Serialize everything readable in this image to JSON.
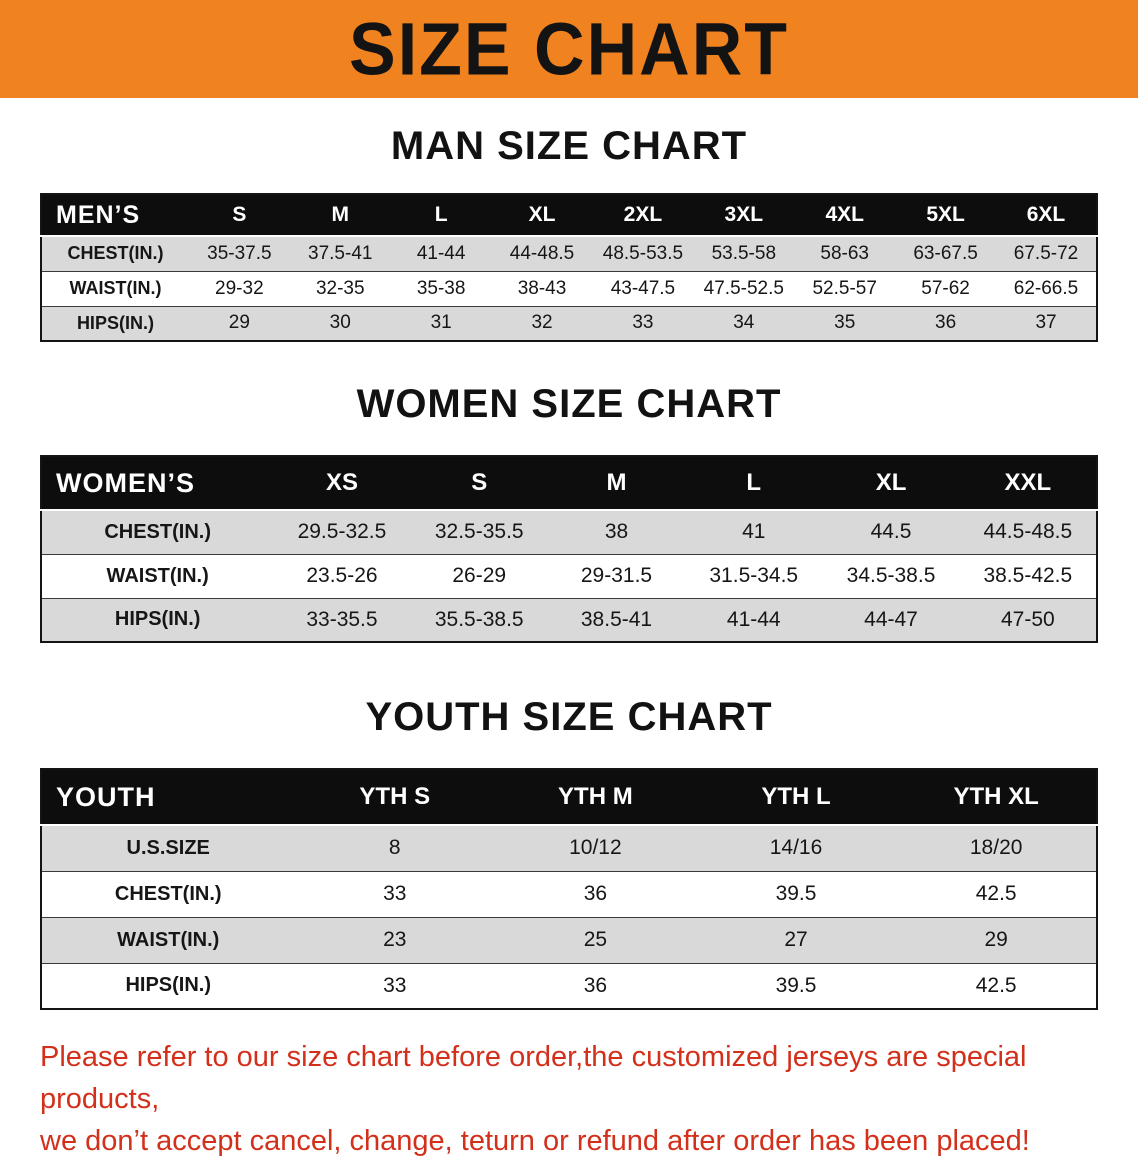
{
  "banner": {
    "title": "SIZE CHART"
  },
  "colors": {
    "banner_bg": "#F0821F",
    "header_bg": "#0d0d0d",
    "row_alt_bg": "#d9d9d9",
    "disclaimer_text": "#D3301C"
  },
  "men": {
    "heading": "MAN SIZE CHART",
    "label": "MEN’S",
    "columns": [
      "S",
      "M",
      "L",
      "XL",
      "2XL",
      "3XL",
      "4XL",
      "5XL",
      "6XL"
    ],
    "rows": [
      {
        "label": "CHEST(IN.)",
        "values": [
          "35-37.5",
          "37.5-41",
          "41-44",
          "44-48.5",
          "48.5-53.5",
          "53.5-58",
          "58-63",
          "63-67.5",
          "67.5-72"
        ]
      },
      {
        "label": "WAIST(IN.)",
        "values": [
          "29-32",
          "32-35",
          "35-38",
          "38-43",
          "43-47.5",
          "47.5-52.5",
          "52.5-57",
          "57-62",
          "62-66.5"
        ]
      },
      {
        "label": "HIPS(IN.)",
        "values": [
          "29",
          "30",
          "31",
          "32",
          "33",
          "34",
          "35",
          "36",
          "37"
        ]
      }
    ]
  },
  "women": {
    "heading": "WOMEN SIZE CHART",
    "label": "WOMEN’S",
    "columns": [
      "XS",
      "S",
      "M",
      "L",
      "XL",
      "XXL"
    ],
    "rows": [
      {
        "label": "CHEST(IN.)",
        "values": [
          "29.5-32.5",
          "32.5-35.5",
          "38",
          "41",
          "44.5",
          "44.5-48.5"
        ]
      },
      {
        "label": "WAIST(IN.)",
        "values": [
          "23.5-26",
          "26-29",
          "29-31.5",
          "31.5-34.5",
          "34.5-38.5",
          "38.5-42.5"
        ]
      },
      {
        "label": "HIPS(IN.)",
        "values": [
          "33-35.5",
          "35.5-38.5",
          "38.5-41",
          "41-44",
          "44-47",
          "47-50"
        ]
      }
    ]
  },
  "youth": {
    "heading": "YOUTH SIZE CHART",
    "label": "YOUTH",
    "columns": [
      "YTH S",
      "YTH M",
      "YTH L",
      "YTH XL"
    ],
    "rows": [
      {
        "label": "U.S.SIZE",
        "values": [
          "8",
          "10/12",
          "14/16",
          "18/20"
        ]
      },
      {
        "label": "CHEST(IN.)",
        "values": [
          "33",
          "36",
          "39.5",
          "42.5"
        ]
      },
      {
        "label": "WAIST(IN.)",
        "values": [
          "23",
          "25",
          "27",
          "29"
        ]
      },
      {
        "label": "HIPS(IN.)",
        "values": [
          "33",
          "36",
          "39.5",
          "42.5"
        ]
      }
    ]
  },
  "disclaimer": {
    "line1": "Please refer to our size chart before order,the customized jerseys are special products,",
    "line2": "we don’t accept cancel, change, teturn or refund after order has been placed!"
  }
}
